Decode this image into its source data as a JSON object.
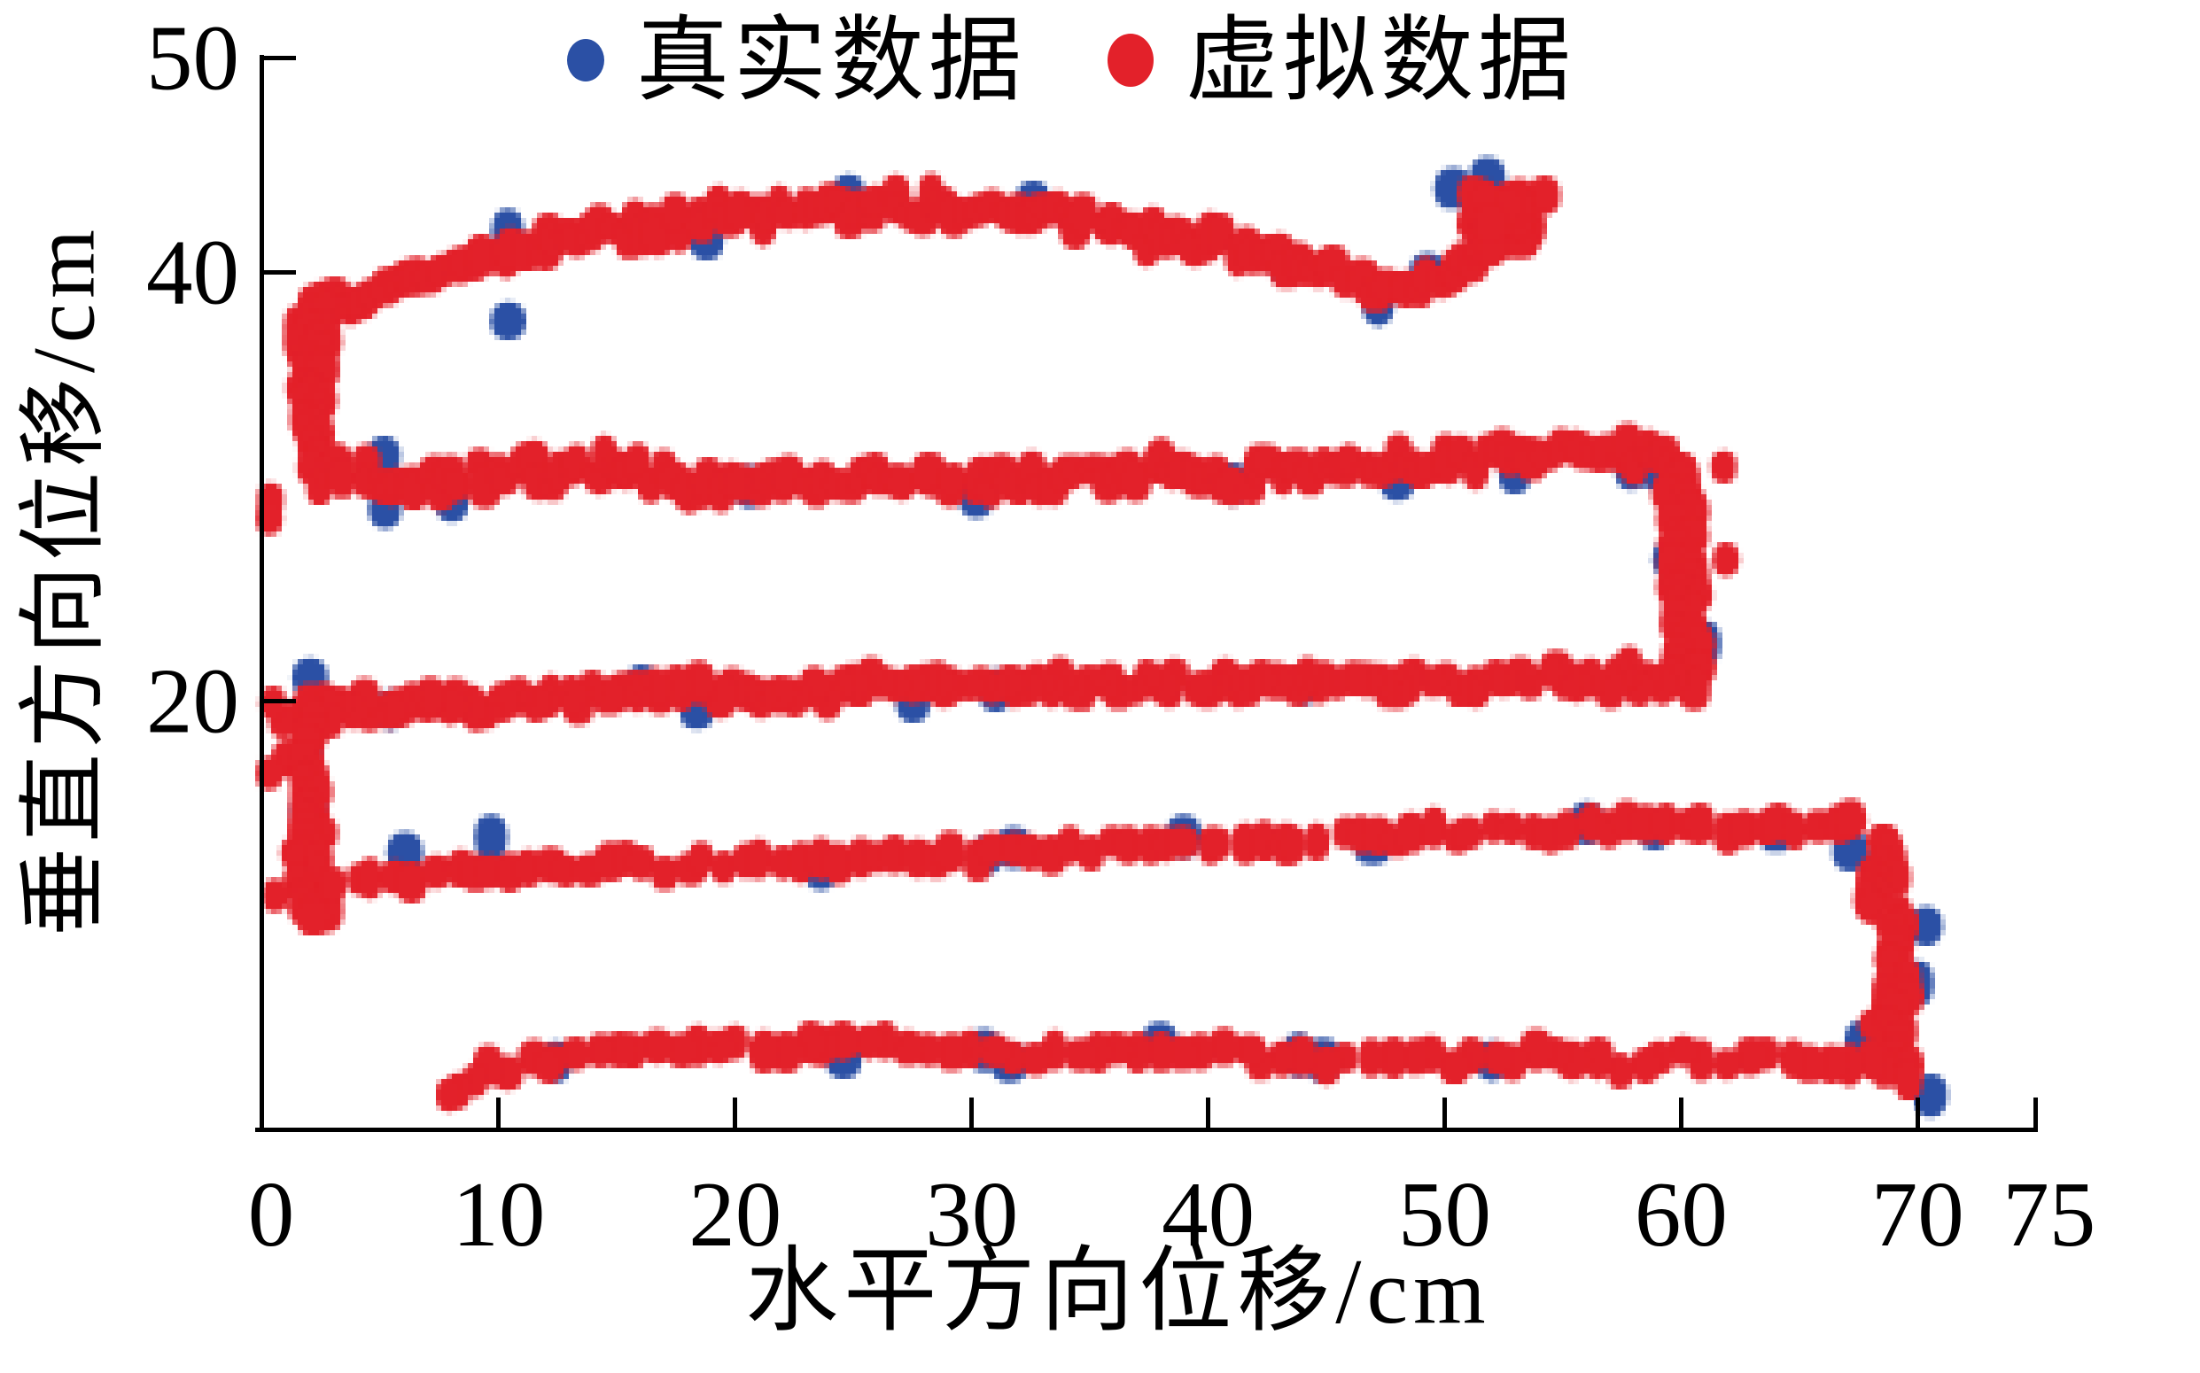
{
  "chart_data": {
    "type": "scatter",
    "title": "",
    "xlabel": "水平方向位移/cm",
    "ylabel": "垂直方向位移/cm",
    "xlim": [
      0,
      75
    ],
    "ylim": [
      0,
      50
    ],
    "xticks": [
      0,
      10,
      20,
      30,
      40,
      50,
      60,
      70,
      75
    ],
    "yticks": [
      20,
      40,
      50
    ],
    "grid": false,
    "legend_position": "top-center",
    "pattern_note": "serpentine raster-scan trajectory: five horizontal rows at y≈43, 30.5, 20.5, 13 and 3.5 cm, linked by vertical turn columns at x≈2 (left side), x≈60 and x≈69 (right side); top row ends in a dense cluster rising to ≈(52, 44)",
    "series": [
      {
        "name": "真实数据",
        "color": "#2b50a5",
        "marker": "dot",
        "points": [
          [
            2.3,
            37.3
          ],
          [
            10.4,
            41.9
          ],
          [
            10.4,
            37.7
          ],
          [
            18.8,
            41.6
          ],
          [
            24.8,
            43.5
          ],
          [
            32.6,
            43.2
          ],
          [
            43.4,
            40.3
          ],
          [
            47.2,
            38.5
          ],
          [
            49.3,
            40.0
          ],
          [
            50.3,
            43.9
          ],
          [
            51.8,
            44.4
          ],
          [
            5.1,
            31.4
          ],
          [
            5.2,
            28.9
          ],
          [
            8.1,
            29.3
          ],
          [
            20.6,
            30.0
          ],
          [
            30.2,
            29.5
          ],
          [
            41.0,
            30.1
          ],
          [
            48.0,
            30.3
          ],
          [
            53.0,
            30.6
          ],
          [
            57.9,
            30.8
          ],
          [
            58.8,
            30.9
          ],
          [
            59.6,
            26.6
          ],
          [
            61.0,
            22.7
          ],
          [
            2.0,
            21.1
          ],
          [
            5.4,
            19.5
          ],
          [
            16.0,
            20.7
          ],
          [
            18.4,
            19.6
          ],
          [
            27.5,
            20.0
          ],
          [
            31.0,
            20.5
          ],
          [
            44.0,
            20.7
          ],
          [
            1.9,
            17.7
          ],
          [
            2.0,
            14.9
          ],
          [
            1.7,
            12.6
          ],
          [
            6.0,
            13.0
          ],
          [
            9.7,
            13.6
          ],
          [
            23.6,
            12.2
          ],
          [
            30.7,
            12.9
          ],
          [
            31.8,
            13.1
          ],
          [
            39.0,
            13.6
          ],
          [
            47.0,
            13.2
          ],
          [
            56.0,
            14.3
          ],
          [
            58.8,
            13.9
          ],
          [
            64.0,
            14.0
          ],
          [
            67.2,
            13.0
          ],
          [
            68.5,
            12.2
          ],
          [
            70.3,
            9.5
          ],
          [
            70.0,
            6.8
          ],
          [
            67.6,
            4.1
          ],
          [
            68.9,
            3.9
          ],
          [
            12.5,
            3.2
          ],
          [
            24.5,
            3.4
          ],
          [
            30.5,
            3.7
          ],
          [
            31.6,
            3.1
          ],
          [
            38.0,
            4.0
          ],
          [
            43.8,
            3.5
          ],
          [
            44.9,
            3.2
          ],
          [
            52.0,
            3.2
          ],
          [
            70.6,
            1.6
          ]
        ]
      },
      {
        "name": "虚拟数据",
        "color": "#e3212a",
        "marker": "dot",
        "path_segments": [
          {
            "id": "row-top",
            "pts": [
              [
                1.5,
                36.8
              ],
              [
                3.0,
                38.4
              ],
              [
                6.0,
                39.5
              ],
              [
                10.0,
                40.9
              ],
              [
                15.0,
                42.0
              ],
              [
                21.0,
                42.7
              ],
              [
                28.0,
                43.0
              ],
              [
                34.0,
                42.5
              ],
              [
                39.0,
                41.6
              ],
              [
                43.0,
                40.6
              ],
              [
                46.0,
                39.8
              ],
              [
                48.5,
                38.9
              ],
              [
                50.5,
                39.8
              ],
              [
                52.0,
                41.6
              ],
              [
                53.3,
                43.0
              ],
              [
                54.0,
                43.6
              ]
            ],
            "density": 2.4,
            "sx": 0.45,
            "sy": 0.75
          },
          {
            "id": "cluster-top-end",
            "cluster": [
              52.3,
              42.4
            ],
            "n": 55,
            "spread_x": 1.5,
            "spread_y": 1.6
          },
          {
            "id": "col-left-upper",
            "pts": [
              [
                2.4,
                38.6
              ],
              [
                2.0,
                36.0
              ],
              [
                2.1,
                33.5
              ],
              [
                2.5,
                31.0
              ]
            ],
            "density": 4.5,
            "sx": 0.85,
            "sy": 0.55
          },
          {
            "id": "row-2",
            "pts": [
              [
                2.2,
                30.6
              ],
              [
                6.0,
                30.1
              ],
              [
                10.0,
                30.5
              ],
              [
                14.0,
                31.0
              ],
              [
                18.0,
                30.2
              ],
              [
                22.0,
                30.5
              ],
              [
                26.0,
                30.1
              ],
              [
                30.0,
                30.4
              ],
              [
                34.0,
                30.2
              ],
              [
                38.0,
                30.7
              ],
              [
                42.0,
                30.5
              ],
              [
                46.0,
                30.8
              ],
              [
                50.0,
                31.1
              ],
              [
                54.0,
                31.3
              ],
              [
                57.0,
                31.6
              ],
              [
                59.5,
                31.4
              ]
            ],
            "density": 2.2,
            "sx": 0.4,
            "sy": 0.8
          },
          {
            "id": "col-right-mid",
            "pts": [
              [
                59.9,
                30.9
              ],
              [
                60.3,
                28.2
              ],
              [
                59.9,
                25.4
              ],
              [
                60.4,
                22.6
              ],
              [
                60.1,
                20.9
              ]
            ],
            "density": 4.2,
            "sx": 0.95,
            "sy": 0.5
          },
          {
            "id": "row-3",
            "pts": [
              [
                60.5,
                20.8
              ],
              [
                56.0,
                21.2
              ],
              [
                51.0,
                20.8
              ],
              [
                46.0,
                21.1
              ],
              [
                41.0,
                20.7
              ],
              [
                36.0,
                20.9
              ],
              [
                31.0,
                20.6
              ],
              [
                26.0,
                20.9
              ],
              [
                21.0,
                20.3
              ],
              [
                16.0,
                20.6
              ],
              [
                11.0,
                20.0
              ],
              [
                6.0,
                19.8
              ],
              [
                2.8,
                19.6
              ],
              [
                1.0,
                19.3
              ]
            ],
            "density": 2.1,
            "sx": 0.4,
            "sy": 0.7
          },
          {
            "id": "col-left-lower",
            "pts": [
              [
                2.3,
                19.9
              ],
              [
                1.8,
                17.2
              ],
              [
                2.3,
                14.4
              ],
              [
                2.0,
                11.8
              ],
              [
                2.6,
                9.9
              ]
            ],
            "density": 4.2,
            "sx": 0.85,
            "sy": 0.5
          },
          {
            "id": "row-4",
            "pts": [
              [
                3.2,
                11.4
              ],
              [
                8.0,
                11.9
              ],
              [
                14.0,
                12.3
              ],
              [
                20.0,
                12.5
              ],
              [
                26.0,
                12.8
              ],
              [
                32.0,
                13.0
              ],
              [
                38.0,
                13.3
              ],
              [
                44.0,
                13.5
              ],
              [
                50.0,
                13.8
              ],
              [
                56.0,
                14.0
              ],
              [
                62.0,
                14.2
              ],
              [
                67.5,
                14.4
              ]
            ],
            "density": 1.25,
            "sx": 0.35,
            "sy": 0.55
          },
          {
            "id": "col-right-lower",
            "pts": [
              [
                68.9,
                13.6
              ],
              [
                68.5,
                11.0
              ],
              [
                69.2,
                8.0
              ],
              [
                68.8,
                5.0
              ],
              [
                69.3,
                2.4
              ]
            ],
            "density": 3.8,
            "sx": 0.8,
            "sy": 0.5
          },
          {
            "id": "row-bottom",
            "pts": [
              [
                68.0,
                2.9
              ],
              [
                63.0,
                3.3
              ],
              [
                58.0,
                3.1
              ],
              [
                53.0,
                3.4
              ],
              [
                48.0,
                3.2
              ],
              [
                43.0,
                3.5
              ],
              [
                38.0,
                3.6
              ],
              [
                34.0,
                3.6
              ],
              [
                30.0,
                3.7
              ],
              [
                26.0,
                3.9
              ],
              [
                22.0,
                3.8
              ],
              [
                18.0,
                3.8
              ],
              [
                15.0,
                3.9
              ],
              [
                12.0,
                3.3
              ],
              [
                9.8,
                2.9
              ],
              [
                8.2,
                2.0
              ]
            ],
            "density": 1.15,
            "sx": 0.3,
            "sy": 0.5
          }
        ],
        "extra_points": [
          [
            0.35,
            29.4
          ],
          [
            0.3,
            28.5
          ],
          [
            0.45,
            19.9
          ],
          [
            0.3,
            16.6
          ],
          [
            0.55,
            10.9
          ],
          [
            7.9,
            1.6
          ],
          [
            12.1,
            2.9
          ],
          [
            61.9,
            26.6
          ],
          [
            61.8,
            30.9
          ]
        ]
      }
    ]
  }
}
